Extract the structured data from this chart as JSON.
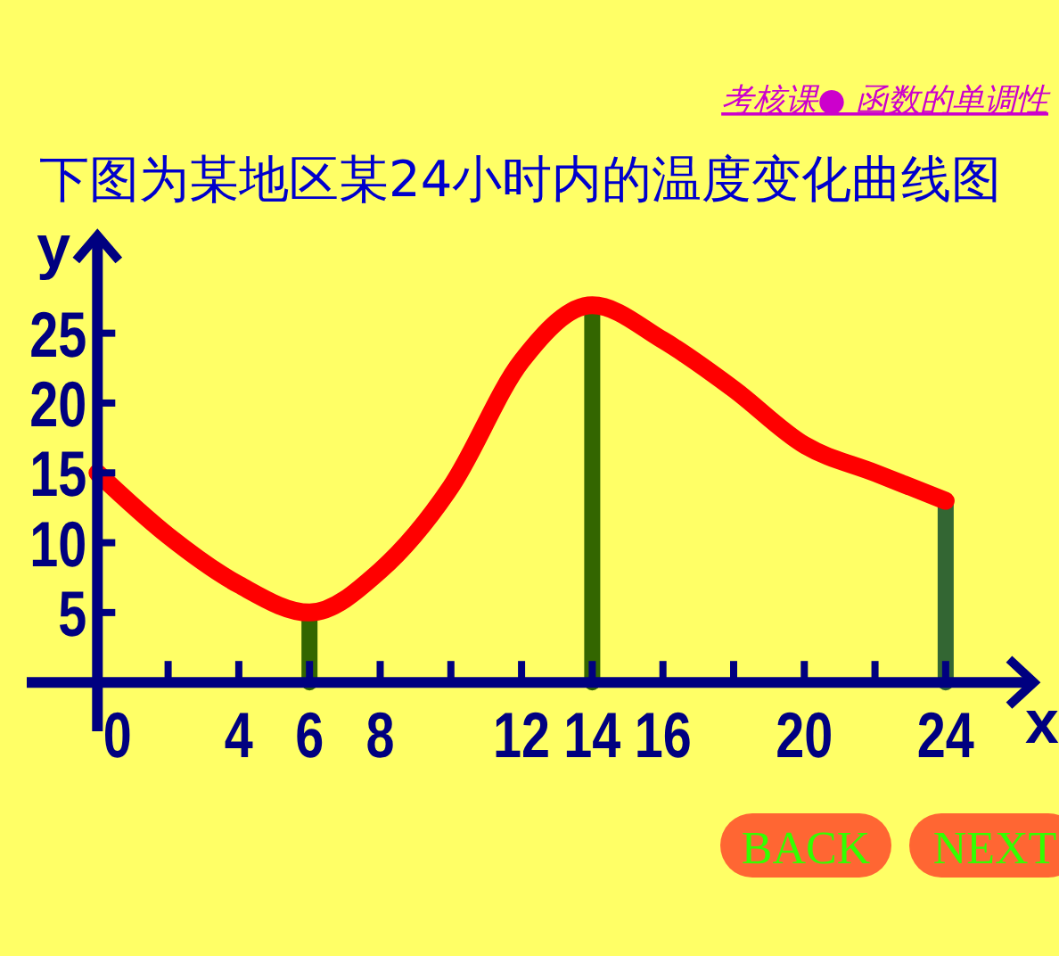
{
  "chart_data": {
    "type": "line",
    "title": "下图为某地区某24小时内的温度变化曲线图",
    "subtitle": "考核课● 函数的单调性",
    "xlabel": "x",
    "ylabel": "y",
    "x": [
      0,
      2,
      4,
      6,
      8,
      10,
      12,
      14,
      16,
      18,
      20,
      22,
      24
    ],
    "series": [
      {
        "color": "#ff0000",
        "values": [
          15,
          10.5,
          7,
          5,
          8,
          14,
          23,
          27,
          24.5,
          21,
          17,
          15,
          13
        ]
      }
    ],
    "xlim": [
      -2,
      26.5
    ],
    "ylim": [
      -3.5,
      32
    ],
    "xticks": [
      0,
      {
        "value": 2,
        "label": null
      },
      4,
      6,
      8,
      {
        "value": 10,
        "label": null
      },
      12,
      14,
      16,
      {
        "value": 18,
        "label": null
      },
      20,
      {
        "value": 22,
        "label": null
      },
      24
    ],
    "yticks": [
      5,
      10,
      15,
      20,
      25
    ],
    "ref_lines": [
      {
        "axis": "x",
        "value": 6,
        "color": "#336600"
      },
      {
        "axis": "x",
        "value": 14,
        "color": "#336600"
      },
      {
        "axis": "x",
        "value": 24,
        "color": "#336633"
      }
    ],
    "marker": "none",
    "line_style": "solid",
    "grid": false,
    "annotations": [
      "BACK",
      "NEXT"
    ]
  }
}
